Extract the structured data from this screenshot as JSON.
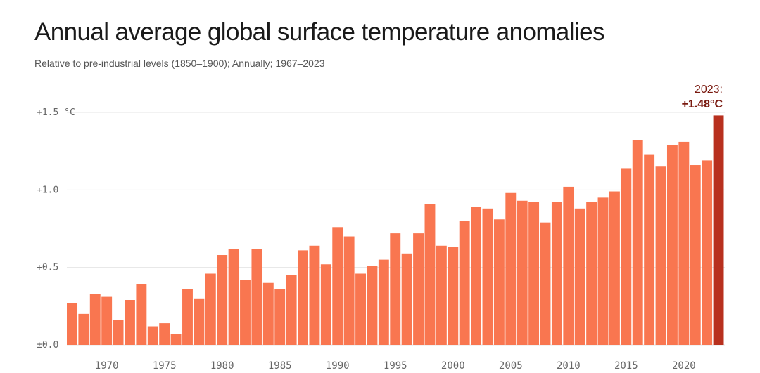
{
  "title": "Annual average global surface temperature anomalies",
  "subtitle": "Relative to pre-industrial levels (1850–1900); Annually; 1967–2023",
  "colors": {
    "bar": "#f97650",
    "highlight": "#b8301e",
    "grid": "#e5e5e5",
    "annotation": "#7a1a10"
  },
  "chart_data": {
    "type": "bar",
    "title": "Annual average global surface temperature anomalies",
    "subtitle": "Relative to pre-industrial levels (1850–1900); Annually; 1967–2023",
    "x_start": 1967,
    "x_end": 2023,
    "values": [
      0.27,
      0.2,
      0.33,
      0.31,
      0.16,
      0.29,
      0.39,
      0.12,
      0.14,
      0.07,
      0.36,
      0.3,
      0.46,
      0.58,
      0.62,
      0.42,
      0.62,
      0.4,
      0.36,
      0.45,
      0.61,
      0.64,
      0.52,
      0.76,
      0.7,
      0.46,
      0.51,
      0.55,
      0.72,
      0.59,
      0.72,
      0.91,
      0.64,
      0.63,
      0.8,
      0.89,
      0.88,
      0.81,
      0.98,
      0.93,
      0.92,
      0.79,
      0.92,
      1.02,
      0.88,
      0.92,
      0.95,
      0.99,
      1.14,
      1.32,
      1.23,
      1.15,
      1.29,
      1.31,
      1.16,
      1.19,
      1.48
    ],
    "ylim": [
      0,
      1.5
    ],
    "yticks": [
      {
        "value": 0,
        "label": "±0.0"
      },
      {
        "value": 0.5,
        "label": "+0.5"
      },
      {
        "value": 1.0,
        "label": "+1.0"
      },
      {
        "value": 1.5,
        "label": "+1.5 °C"
      }
    ],
    "xticks": [
      1970,
      1975,
      1980,
      1985,
      1990,
      1995,
      2000,
      2005,
      2010,
      2015,
      2020
    ],
    "annotation": {
      "line1": "2023:",
      "line2": "+1.48°C"
    },
    "grid": true,
    "highlight_last": true
  }
}
